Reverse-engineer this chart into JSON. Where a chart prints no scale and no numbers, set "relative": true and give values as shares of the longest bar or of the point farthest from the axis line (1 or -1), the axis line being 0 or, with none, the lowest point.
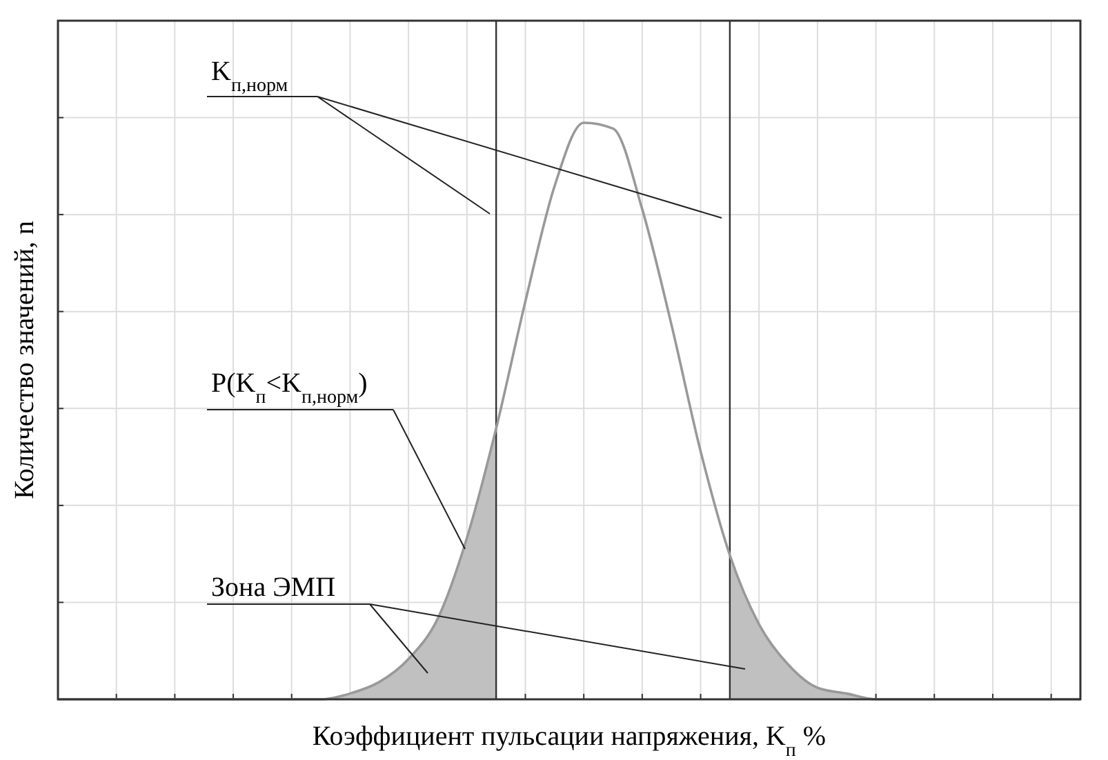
{
  "chart_data": {
    "type": "line",
    "relative": true,
    "xlabel": "Коэффициент пульсации напряжения, K$_{п}$ %",
    "ylabel": "Количество значений, n",
    "grid": true,
    "categories": [
      null,
      null,
      null,
      null,
      null,
      null,
      null,
      null,
      null,
      null,
      null,
      null,
      null,
      null,
      null,
      null,
      null,
      null,
      null,
      null,
      null,
      null,
      null,
      null,
      null,
      null,
      null,
      null,
      null,
      null,
      null,
      null,
      null,
      null,
      null,
      null
    ],
    "series": [
      {
        "type": "area",
        "color": "#c0c0c0",
        "values": [
          0,
          0,
          0,
          0,
          0,
          0,
          0,
          0,
          0,
          0,
          0.01,
          0.03,
          0.07,
          0.14,
          0.28,
          0.47,
          null,
          null,
          null,
          null,
          null,
          null,
          null,
          null,
          null,
          null,
          null,
          null,
          null,
          null,
          null,
          null,
          null,
          null,
          null,
          null
        ]
      },
      {
        "type": "area",
        "color": "#c0c0c0",
        "values": [
          null,
          null,
          null,
          null,
          null,
          null,
          null,
          null,
          null,
          null,
          null,
          null,
          null,
          null,
          null,
          null,
          null,
          null,
          null,
          null,
          null,
          null,
          null,
          0.25,
          0.13,
          0.06,
          0.02,
          0.01,
          0,
          0,
          0,
          0,
          0,
          0,
          0,
          0
        ]
      },
      {
        "color": "#999999",
        "values": [
          0,
          0,
          0,
          0,
          0,
          0,
          0,
          0,
          0,
          0,
          0.01,
          0.03,
          0.07,
          0.14,
          0.28,
          0.47,
          0.69,
          0.89,
          1,
          0.99,
          0.85,
          0.65,
          0.43,
          0.25,
          0.13,
          0.06,
          0.02,
          0.01,
          0,
          0,
          0,
          0,
          0,
          0,
          0,
          0
        ]
      }
    ],
    "annotations": [
      "K$_{п,норм}$",
      "P(K$_{п}$<K$_{п,норм}$)",
      "Зона ЭМП"
    ]
  }
}
